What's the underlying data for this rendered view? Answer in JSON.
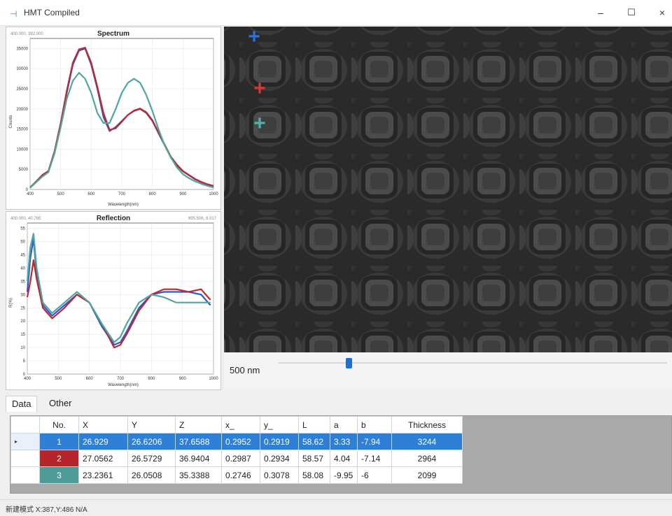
{
  "window": {
    "title": "HMT Compiled",
    "minimize": "–",
    "maximize": "☐",
    "close": "×"
  },
  "colors": {
    "series1": "#2f57c8",
    "series2": "#c0282e",
    "series3": "#4fa7a1"
  },
  "spectrum": {
    "coords_left": "400.000, 392.000",
    "chart_data": {
      "type": "line",
      "title": "Spectrum",
      "xlabel": "Wavelength(nm)",
      "ylabel": "Counts",
      "xlim": [
        400,
        1000
      ],
      "ylim": [
        0,
        37500
      ],
      "xticks": [
        400,
        500,
        600,
        700,
        800,
        900,
        1000
      ],
      "yticks": [
        0,
        5000,
        10000,
        15000,
        20000,
        25000,
        30000,
        35000
      ],
      "x": [
        400,
        420,
        440,
        460,
        480,
        500,
        520,
        540,
        560,
        580,
        600,
        620,
        640,
        660,
        680,
        700,
        720,
        740,
        760,
        780,
        800,
        820,
        840,
        860,
        880,
        900,
        920,
        940,
        960,
        980,
        1000
      ],
      "series": [
        {
          "color": "#2f57c8",
          "values": [
            500,
            2000,
            3500,
            4500,
            9000,
            16000,
            24000,
            31000,
            34500,
            35000,
            31000,
            25000,
            18000,
            14500,
            15500,
            17000,
            18500,
            19500,
            20000,
            19000,
            17000,
            14000,
            11000,
            8000,
            6000,
            4500,
            3500,
            2500,
            1800,
            1200,
            800
          ]
        },
        {
          "color": "#c0282e",
          "values": [
            500,
            2000,
            3600,
            4600,
            9500,
            16500,
            24500,
            31500,
            34800,
            35200,
            31500,
            25500,
            19000,
            14800,
            15200,
            16800,
            18500,
            19600,
            20100,
            19200,
            17200,
            14200,
            11200,
            8200,
            6200,
            4600,
            3600,
            2600,
            1900,
            1300,
            900
          ]
        },
        {
          "color": "#4fa7a1",
          "values": [
            400,
            1800,
            3200,
            4300,
            9000,
            15500,
            22500,
            27000,
            29000,
            27500,
            24000,
            19000,
            16500,
            16500,
            20000,
            24000,
            26500,
            27500,
            26500,
            23500,
            19500,
            15000,
            11000,
            8000,
            5500,
            3800,
            2800,
            2000,
            1400,
            900,
            500
          ]
        }
      ]
    }
  },
  "reflection": {
    "coords_left": "400.000, 40.765",
    "coords_right": "695.506, 8.017",
    "chart_data": {
      "type": "line",
      "title": "Reflection",
      "xlabel": "Wavelength(nm)",
      "ylabel": "R(%)",
      "xlim": [
        400,
        1000
      ],
      "ylim": [
        0,
        57
      ],
      "xticks": [
        400,
        500,
        600,
        700,
        800,
        900,
        1000
      ],
      "yticks": [
        0,
        5,
        10,
        15,
        20,
        25,
        30,
        35,
        40,
        45,
        50,
        55
      ],
      "x": [
        400,
        410,
        420,
        430,
        450,
        480,
        520,
        560,
        600,
        640,
        680,
        700,
        720,
        760,
        800,
        840,
        880,
        920,
        960,
        990
      ],
      "series": [
        {
          "color": "#2f57c8",
          "values": [
            31,
            44,
            51,
            38,
            26,
            22,
            26,
            30,
            27,
            18,
            11,
            12,
            16,
            25,
            30,
            31,
            31,
            31,
            30,
            26
          ]
        },
        {
          "color": "#c0282e",
          "values": [
            29,
            35,
            43,
            36,
            25,
            21,
            25,
            30,
            27,
            19,
            10,
            11,
            15,
            24,
            30,
            32,
            32,
            31,
            32,
            28
          ]
        },
        {
          "color": "#4fa7a1",
          "values": [
            35,
            48,
            53,
            40,
            27,
            23,
            27,
            31,
            27,
            19,
            12,
            14,
            19,
            27,
            30,
            29,
            27,
            27,
            27,
            27
          ]
        }
      ]
    }
  },
  "viewer": {
    "scale_label": "500 nm",
    "slider_value": 0.18,
    "markers": [
      {
        "color": "#2f6fd6",
        "icon": "plus-marker-blue"
      },
      {
        "color": "#d03a3a",
        "icon": "plus-marker-red"
      },
      {
        "color": "#4fb0aa",
        "icon": "plus-marker-teal"
      }
    ]
  },
  "tabs": [
    "Data",
    "Other"
  ],
  "table": {
    "columns": [
      "No.",
      "X",
      "Y",
      "Z",
      "x_",
      "y_",
      "L",
      "a",
      "b",
      "Thickness"
    ],
    "rows": [
      {
        "no": "1",
        "swatch": "#2f7fd6",
        "X": "26.929",
        "Y": "26.6206",
        "Z": "37.6588",
        "x_": "0.2952",
        "y_": "0.2919",
        "L": "58.62",
        "a": "3.33",
        "b": "-7.94",
        "thickness": "3244"
      },
      {
        "no": "2",
        "swatch": "#b5262b",
        "X": "27.0562",
        "Y": "26.5729",
        "Z": "36.9404",
        "x_": "0.2987",
        "y_": "0.2934",
        "L": "58.57",
        "a": "4.04",
        "b": "-7.14",
        "thickness": "2964"
      },
      {
        "no": "3",
        "swatch": "#4e9c98",
        "X": "23.2361",
        "Y": "26.0508",
        "Z": "35.3388",
        "x_": "0.2746",
        "y_": "0.3078",
        "L": "58.08",
        "a": "-9.95",
        "b": "-6",
        "thickness": "2099"
      }
    ]
  },
  "status": {
    "text": "新建模式 X:387,Y:486 N/A"
  }
}
